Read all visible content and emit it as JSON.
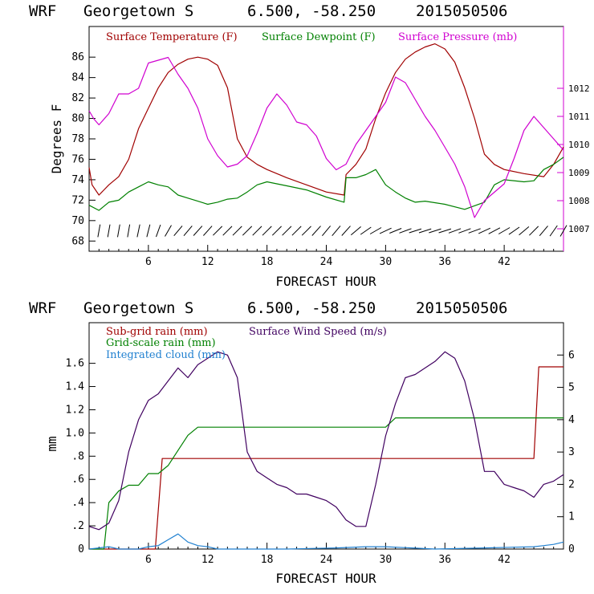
{
  "chart_data": [
    {
      "type": "line",
      "header": {
        "model": "WRF",
        "station": "Georgetown S",
        "coords": "6.500, -58.250",
        "run": "2015050506"
      },
      "xlabel": "FORECAST HOUR",
      "ylabel": "Degrees F",
      "xlim": [
        0,
        48
      ],
      "x_ticks": [
        6,
        12,
        18,
        24,
        30,
        36,
        42
      ],
      "x_tick_labels": [
        "6",
        "12",
        "18",
        "24",
        "30",
        "36",
        "42"
      ],
      "ylim": [
        67,
        89
      ],
      "y_ticks": [
        68,
        70,
        72,
        74,
        76,
        78,
        80,
        82,
        84,
        86
      ],
      "y_tick_labels": [
        "68",
        "70",
        "72",
        "74",
        "76",
        "78",
        "80",
        "82",
        "84",
        "86"
      ],
      "y2lim": [
        1006.2,
        1014.2
      ],
      "y2_ticks": [
        1007,
        1008,
        1009,
        1010,
        1011,
        1012
      ],
      "y2_tick_labels": [
        "1007",
        "1008",
        "1009",
        "1010",
        "1011",
        "1012"
      ],
      "grid": false,
      "series": [
        {
          "name": "Surface Temperature (F)",
          "color": "#a00000",
          "axis": "left",
          "x": [
            0,
            0.3,
            1,
            2,
            3,
            4,
            5,
            6,
            7,
            8,
            9,
            10,
            11,
            12,
            13,
            14,
            15,
            16,
            17,
            18,
            20,
            22,
            24,
            25.8,
            26,
            27,
            28,
            29,
            30,
            31,
            32,
            33,
            34,
            35,
            36,
            37,
            38,
            39,
            40,
            41,
            42,
            44,
            46,
            47,
            48
          ],
          "y": [
            75.2,
            73.5,
            72.5,
            73.5,
            74.3,
            76,
            79,
            81,
            83,
            84.5,
            85.3,
            85.8,
            86,
            85.8,
            85.2,
            83,
            78,
            76.2,
            75.5,
            75,
            74.2,
            73.5,
            72.8,
            72.5,
            74.5,
            75.5,
            77,
            80,
            82.5,
            84.5,
            85.8,
            86.5,
            87,
            87.3,
            86.8,
            85.5,
            83,
            80,
            76.5,
            75.5,
            75,
            74.6,
            74.3,
            75.5,
            77.2
          ]
        },
        {
          "name": "Surface Dewpoint (F)",
          "color": "#008000",
          "axis": "left",
          "x": [
            0,
            1,
            2,
            3,
            4,
            5,
            6,
            7,
            8,
            9,
            10,
            11,
            12,
            13,
            14,
            15,
            16,
            17,
            18,
            20,
            22,
            24,
            25.8,
            26,
            27,
            28,
            29,
            30,
            31,
            32,
            33,
            34,
            36,
            38,
            40,
            41,
            42,
            44,
            45,
            46,
            47,
            48
          ],
          "y": [
            71.5,
            71,
            71.8,
            72,
            72.8,
            73.3,
            73.8,
            73.5,
            73.3,
            72.5,
            72.2,
            71.9,
            71.6,
            71.8,
            72.1,
            72.2,
            72.8,
            73.5,
            73.8,
            73.4,
            73,
            72.3,
            71.8,
            74.2,
            74.2,
            74.5,
            75,
            73.5,
            72.8,
            72.2,
            71.8,
            71.9,
            71.6,
            71.1,
            71.8,
            73.5,
            74,
            73.8,
            73.9,
            75,
            75.5,
            76.2
          ]
        },
        {
          "name": "Surface Pressure (mb)",
          "color": "#d000d0",
          "axis": "right",
          "x": [
            0,
            0.5,
            1,
            2,
            3,
            4,
            5,
            6,
            7,
            8,
            9,
            10,
            11,
            12,
            13,
            14,
            15,
            16,
            17,
            18,
            19,
            20,
            21,
            22,
            23,
            24,
            25,
            26,
            27,
            28,
            29,
            30,
            31,
            32,
            33,
            34,
            35,
            36,
            37,
            38,
            39,
            40,
            41,
            42,
            43,
            44,
            45,
            46,
            47,
            48
          ],
          "y": [
            1011.2,
            1010.9,
            1010.7,
            1011.1,
            1011.8,
            1011.8,
            1012.0,
            1012.9,
            1013.0,
            1013.1,
            1012.5,
            1012.0,
            1011.3,
            1010.2,
            1009.6,
            1009.2,
            1009.3,
            1009.6,
            1010.4,
            1011.3,
            1011.8,
            1011.4,
            1010.8,
            1010.7,
            1010.3,
            1009.5,
            1009.1,
            1009.3,
            1010.0,
            1010.5,
            1011.0,
            1011.5,
            1012.4,
            1012.2,
            1011.6,
            1011.0,
            1010.5,
            1009.9,
            1009.3,
            1008.5,
            1007.4,
            1008.0,
            1008.3,
            1008.6,
            1009.5,
            1010.5,
            1011.0,
            1010.6,
            1010.2,
            1009.8
          ]
        }
      ],
      "wind_barbs": {
        "x_start": 1,
        "x_end": 48,
        "spacing": 1,
        "y": 69,
        "angles_deg": [
          80,
          80,
          80,
          80,
          78,
          76,
          70,
          60,
          50,
          50,
          48,
          48,
          45,
          45,
          45,
          45,
          45,
          45,
          45,
          45,
          45,
          45,
          48,
          50,
          50,
          48,
          40,
          35,
          30,
          25,
          22,
          20,
          18,
          18,
          18,
          18,
          20,
          20,
          20,
          25,
          28,
          30,
          35,
          40,
          45,
          50,
          55,
          60
        ]
      }
    },
    {
      "type": "line",
      "header": {
        "model": "WRF",
        "station": "Georgetown S",
        "coords": "6.500, -58.250",
        "run": "2015050506"
      },
      "xlabel": "FORECAST HOUR",
      "ylabel": "mm",
      "xlim": [
        0,
        48
      ],
      "x_ticks": [
        6,
        12,
        18,
        24,
        30,
        36,
        42
      ],
      "x_tick_labels": [
        "6",
        "12",
        "18",
        "24",
        "30",
        "36",
        "42"
      ],
      "ylim": [
        0,
        1.95
      ],
      "y_ticks": [
        0,
        0.2,
        0.4,
        0.6,
        0.8,
        1.0,
        1.2,
        1.4,
        1.6
      ],
      "y_tick_labels": [
        "0",
        ".2",
        ".4",
        ".6",
        ".8",
        "1.0",
        "1.2",
        "1.4",
        "1.6"
      ],
      "y2lim": [
        0,
        7
      ],
      "y2_ticks": [
        0,
        1,
        2,
        3,
        4,
        5,
        6
      ],
      "y2_tick_labels": [
        "0",
        "1",
        "2",
        "3",
        "4",
        "5",
        "6"
      ],
      "grid": false,
      "series": [
        {
          "name": "Sub-grid rain (mm)",
          "color": "#a00000",
          "axis": "left",
          "x": [
            0,
            6.7,
            7.4,
            45,
            45.5,
            48
          ],
          "y": [
            0,
            0,
            0.78,
            0.78,
            1.57,
            1.57
          ]
        },
        {
          "name": "Grid-scale rain (mm)",
          "color": "#008000",
          "axis": "left",
          "x": [
            0,
            1.5,
            2,
            3,
            4,
            5,
            6,
            7,
            8,
            9,
            10,
            11,
            16,
            25,
            26,
            30,
            31,
            48
          ],
          "y": [
            0,
            0,
            0.4,
            0.5,
            0.55,
            0.55,
            0.65,
            0.65,
            0.72,
            0.85,
            0.98,
            1.05,
            1.05,
            1.05,
            1.05,
            1.05,
            1.13,
            1.13
          ]
        },
        {
          "name": "Integrated cloud (mm)",
          "color": "#2080d0",
          "axis": "left",
          "x": [
            0,
            1,
            2,
            3,
            5,
            6,
            7,
            8,
            9,
            10,
            11,
            12,
            13,
            20,
            25,
            28,
            30,
            35,
            40,
            45,
            46,
            47,
            48
          ],
          "y": [
            0,
            0.01,
            0.02,
            0,
            0,
            0.02,
            0.03,
            0.08,
            0.13,
            0.06,
            0.03,
            0.02,
            0,
            0,
            0.01,
            0.02,
            0.02,
            0,
            0.01,
            0.02,
            0.03,
            0.04,
            0.06
          ]
        },
        {
          "name": "Surface Wind Speed (m/s)",
          "color": "#400060",
          "axis": "right",
          "x": [
            0,
            1,
            2,
            3,
            4,
            5,
            6,
            7,
            8,
            9,
            10,
            11,
            12,
            13,
            14,
            15,
            16,
            17,
            18,
            19,
            20,
            21,
            22,
            23,
            24,
            25,
            26,
            27,
            28,
            29,
            30,
            31,
            32,
            33,
            34,
            35,
            36,
            37,
            38,
            39,
            40,
            41,
            42,
            43,
            44,
            45,
            46,
            47,
            48
          ],
          "y": [
            0.7,
            0.6,
            0.8,
            1.5,
            3.0,
            4.0,
            4.6,
            4.8,
            5.2,
            5.6,
            5.3,
            5.7,
            5.9,
            6.1,
            6.0,
            5.3,
            3.0,
            2.4,
            2.2,
            2.0,
            1.9,
            1.7,
            1.7,
            1.6,
            1.5,
            1.3,
            0.9,
            0.7,
            0.7,
            2.0,
            3.5,
            4.5,
            5.3,
            5.4,
            5.6,
            5.8,
            6.1,
            5.9,
            5.2,
            4.0,
            2.4,
            2.4,
            2.0,
            1.9,
            1.8,
            1.6,
            2.0,
            2.1,
            2.3
          ]
        }
      ]
    }
  ]
}
